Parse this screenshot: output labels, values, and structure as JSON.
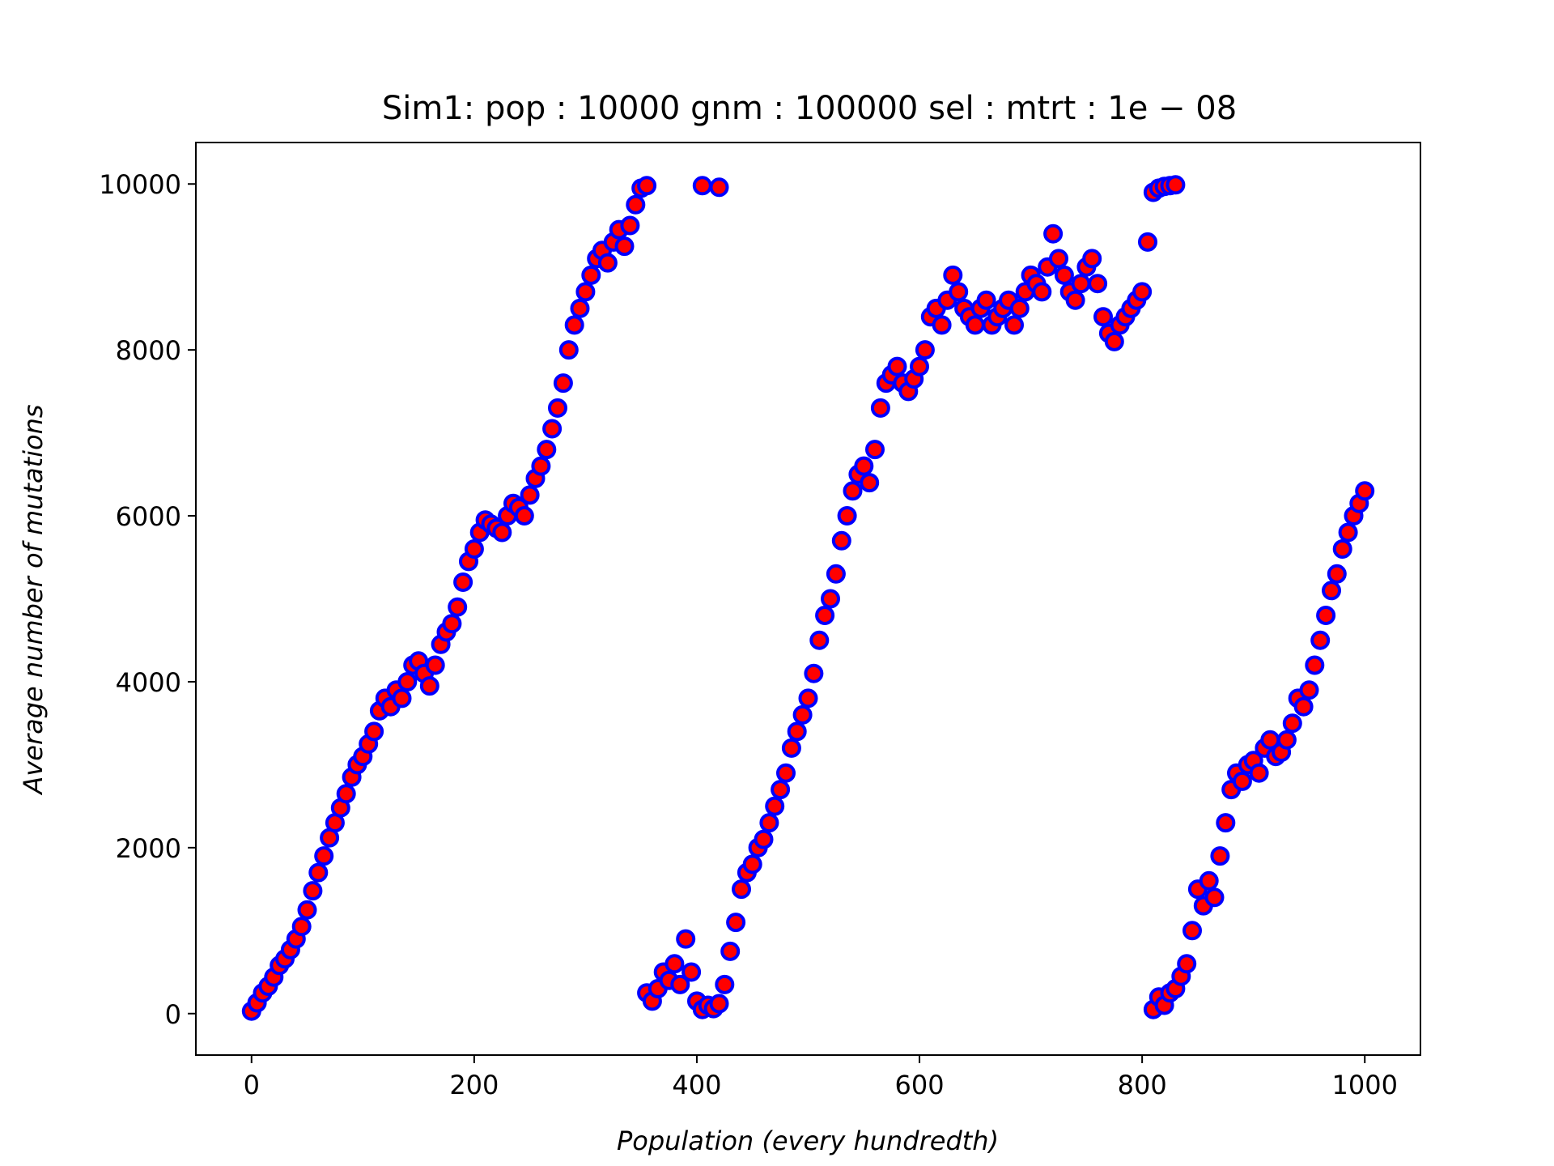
{
  "chart_data": {
    "type": "scatter",
    "title": "Sim1: pop : 10000 gnm : 100000 sel :  mtrt : 1e − 08",
    "xlabel": "Population (every hundredth)",
    "ylabel": "Average number of mutations",
    "xlim": [
      -50,
      1050
    ],
    "ylim": [
      -500,
      10500
    ],
    "xticks": [
      0,
      200,
      400,
      600,
      800,
      1000
    ],
    "yticks": [
      0,
      2000,
      4000,
      6000,
      8000,
      10000
    ],
    "grid": false,
    "legend": "none",
    "marker_face_color": "#ff0000",
    "marker_edge_color": "#0000ff",
    "series": [
      {
        "x": [
          0,
          5,
          10,
          15,
          20,
          25,
          30,
          35,
          40,
          45,
          50,
          55,
          60,
          65,
          70,
          75,
          80,
          85,
          90,
          95,
          100,
          105,
          110,
          115,
          120,
          125,
          130,
          135,
          140,
          145,
          150,
          155,
          160,
          165,
          170,
          175,
          180,
          185,
          190,
          195,
          200,
          205,
          210,
          215,
          220,
          225,
          230,
          235,
          240,
          245,
          250,
          255,
          260,
          265,
          270,
          275,
          280,
          285,
          290,
          295,
          300,
          305,
          310,
          315,
          320,
          325,
          330,
          335,
          340,
          345,
          350,
          355
        ],
        "y": [
          30,
          130,
          250,
          330,
          440,
          580,
          660,
          770,
          900,
          1050,
          1250,
          1480,
          1700,
          1900,
          2120,
          2300,
          2480,
          2650,
          2850,
          3000,
          3100,
          3250,
          3400,
          3650,
          3800,
          3700,
          3900,
          3800,
          4000,
          4200,
          4250,
          4100,
          3950,
          4200,
          4450,
          4600,
          4700,
          4900,
          5200,
          5450,
          5600,
          5800,
          5950,
          5900,
          5850,
          5800,
          6000,
          6150,
          6100,
          6000,
          6250,
          6450,
          6600,
          6800,
          7050,
          7300,
          7600,
          8000,
          8300,
          8500,
          8700,
          8900,
          9100,
          9200,
          9050,
          9300,
          9450,
          9250,
          9500,
          9750,
          9950,
          9980
        ]
      },
      {
        "x": [
          355,
          360,
          365,
          370,
          375,
          380,
          385,
          390,
          395,
          400,
          405,
          410,
          415,
          420,
          425,
          430,
          435,
          440,
          445,
          450,
          455,
          460,
          465,
          470,
          475,
          480,
          485,
          490,
          495,
          500,
          505,
          510,
          515,
          520,
          525,
          530,
          535,
          540,
          545,
          550,
          555,
          560,
          565,
          570,
          575,
          580,
          585,
          590,
          595,
          600,
          605,
          610,
          615,
          620,
          625,
          630,
          635,
          640,
          645,
          650,
          655,
          660,
          665,
          670,
          675,
          680,
          685,
          690,
          695,
          700,
          705,
          710,
          715,
          720,
          725,
          730,
          735,
          740,
          745,
          750,
          755,
          760,
          765,
          770,
          775,
          780,
          785,
          790,
          795,
          800,
          805,
          810,
          815,
          820,
          825,
          830
        ],
        "y": [
          250,
          150,
          300,
          500,
          400,
          600,
          350,
          900,
          500,
          150,
          50,
          100,
          60,
          120,
          350,
          750,
          1100,
          1500,
          1700,
          1800,
          2000,
          2100,
          2300,
          2500,
          2700,
          2900,
          3200,
          3400,
          3600,
          3800,
          4100,
          4500,
          4800,
          5000,
          5300,
          5700,
          6000,
          6300,
          6500,
          6600,
          6400,
          6800,
          7300,
          7600,
          7700,
          7800,
          7600,
          7500,
          7650,
          7800,
          8000,
          8400,
          8500,
          8300,
          8600,
          8900,
          8700,
          8500,
          8400,
          8300,
          8500,
          8600,
          8300,
          8400,
          8500,
          8600,
          8300,
          8500,
          8700,
          8900,
          8800,
          8700,
          9000,
          9400,
          9100,
          8900,
          8700,
          8600,
          8800,
          9000,
          9100,
          8800,
          8400,
          8200,
          8100,
          8300,
          8400,
          8500,
          8600,
          8700,
          9300,
          9900,
          9950,
          9970,
          9980,
          9990
        ]
      },
      {
        "x": [
          405,
          420
        ],
        "y": [
          9980,
          9960
        ]
      },
      {
        "x": [
          810,
          815,
          820,
          825,
          830,
          835,
          840,
          845,
          850,
          855,
          860,
          865,
          870,
          875,
          880,
          885,
          890,
          895,
          900,
          905,
          910,
          915,
          920,
          925,
          930,
          935,
          940,
          945,
          950,
          955,
          960,
          965,
          970,
          975,
          980,
          985,
          990,
          995,
          1000
        ],
        "y": [
          50,
          200,
          100,
          250,
          300,
          450,
          600,
          1000,
          1500,
          1300,
          1600,
          1400,
          1900,
          2300,
          2700,
          2900,
          2800,
          3000,
          3050,
          2900,
          3200,
          3300,
          3100,
          3150,
          3300,
          3500,
          3800,
          3700,
          3900,
          4200,
          4500,
          4800,
          5100,
          5300,
          5600,
          5800,
          6000,
          6150,
          6300
        ]
      }
    ]
  }
}
